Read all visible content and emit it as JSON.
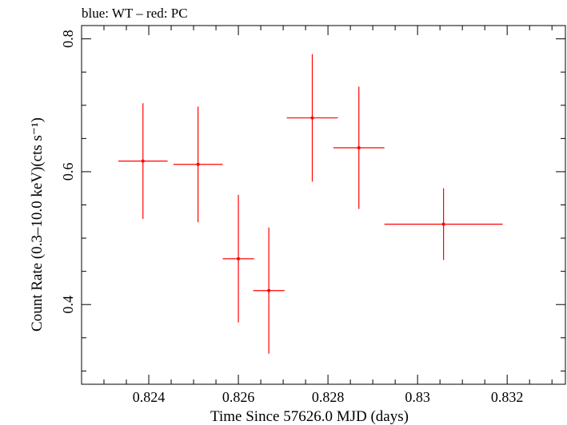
{
  "chart_data": {
    "type": "scatter",
    "title": "blue: WT – red: PC",
    "xlabel": "Time Since 57626.0 MJD (days)",
    "ylabel": "Count Rate (0.3–10.0 keV)(cts s⁻¹)",
    "xlim": [
      0.8225,
      0.8333
    ],
    "ylim": [
      0.28,
      0.82
    ],
    "x_ticks": [
      0.824,
      0.826,
      0.828,
      0.83,
      0.832
    ],
    "x_tick_labels": [
      "0.824",
      "0.826",
      "0.828",
      "0.83",
      "0.832"
    ],
    "y_ticks": [
      0.4,
      0.6,
      0.8
    ],
    "y_tick_labels": [
      "0.4",
      "0.6",
      "0.8"
    ],
    "grid": false,
    "series": [
      {
        "color": "#ff0000",
        "points": [
          {
            "x": 0.82387,
            "xerr": 0.00055,
            "y": 0.616,
            "yerr": 0.087
          },
          {
            "x": 0.8251,
            "xerr": 0.00055,
            "y": 0.611,
            "yerr": 0.087
          },
          {
            "x": 0.826,
            "xerr": 0.00035,
            "y": 0.469,
            "yerr": 0.096
          },
          {
            "x": 0.82668,
            "xerr": 0.00035,
            "y": 0.421,
            "yerr": 0.095
          },
          {
            "x": 0.82765,
            "xerr": 0.00057,
            "y": 0.681,
            "yerr": 0.096
          },
          {
            "x": 0.82869,
            "xerr": 0.00057,
            "y": 0.636,
            "yerr": 0.092
          },
          {
            "x": 0.83058,
            "xerr": 0.00132,
            "y": 0.521,
            "yerr": 0.054
          }
        ]
      }
    ]
  }
}
